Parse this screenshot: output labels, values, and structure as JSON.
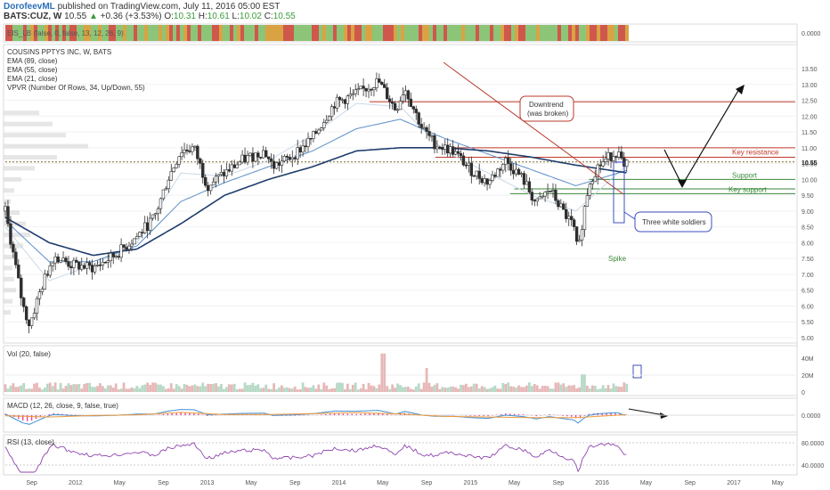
{
  "header": {
    "author": "DorofeevML",
    "published": "published on TradingView.com, July 11, 2016 05:00 EST",
    "symbol": "BATS:CUZ, W",
    "last": "10.55",
    "change": "+0.36 (+3.53%)",
    "open_label": "O:",
    "open": "10.31",
    "high_label": "H:",
    "high": "10.61",
    "low_label": "L:",
    "low": "10.02",
    "close_label": "C:",
    "close": "10.55"
  },
  "indicators": {
    "eis": "EIS_LB (false, 0, false, 13, 12, 26, 9)",
    "eis_value": "0.0000",
    "title": "COUSINS PPTYS INC, W, BATS",
    "ema89": "EMA (89, close)",
    "ema55": "EMA (55, close)",
    "ema21": "EMA (21, close)",
    "vpvr": "VPVR (Number Of Rows, 34, Up/Down, 55)",
    "vol": "Vol (20, false)",
    "macd": "MACD (12, 26, close, 9, false, true)",
    "rsi": "RSI (13, close)"
  },
  "colors": {
    "up": "#2e2e2e",
    "down": "#2e2e2e",
    "ema89": "#1f3d6d",
    "ema55": "#5b8fc8",
    "ema21": "#c9d9ea",
    "resistance": "#c0392b",
    "support": "#3b8a3b",
    "eis_green": "#8cc578",
    "eis_red": "#d0574c",
    "eis_orange": "#d9a343",
    "macd_line": "#3f8fd6",
    "macd_signal": "#f09a3a",
    "macd_hist": "#e0489a",
    "rsi": "#8e44ad"
  },
  "annotations": {
    "downtrend": "Downtrend",
    "downtrend2": "(was broken)",
    "key_resistance": "Key resistance",
    "support": "Support",
    "key_support": "Key support",
    "three_white_soldiers": "Three white soldiers",
    "spike": "Spike"
  },
  "chart_data": {
    "type": "candlestick",
    "price_axis": {
      "ticks": [
        "13.50",
        "13.00",
        "12.50",
        "12.00",
        "11.50",
        "11.00",
        "10.50",
        "10.00",
        "9.50",
        "9.00",
        "8.50",
        "8.00",
        "7.50",
        "7.00",
        "6.50",
        "6.00",
        "5.50",
        "5.00"
      ],
      "last_label": "10.55",
      "ylim": [
        4.9,
        13.5
      ]
    },
    "time_axis": {
      "ticks": [
        "Sep",
        "2012",
        "May",
        "Sep",
        "2013",
        "May",
        "Sep",
        "2014",
        "May",
        "Sep",
        "2015",
        "May",
        "Sep",
        "2016",
        "May",
        "Sep",
        "2017",
        "May"
      ]
    },
    "price_path": [
      {
        "t": 0.0,
        "p": 9.0
      },
      {
        "t": 0.2,
        "p": 7.5
      },
      {
        "t": 0.4,
        "p": 6.0
      },
      {
        "t": 0.55,
        "p": 5.4
      },
      {
        "t": 0.8,
        "p": 6.5
      },
      {
        "t": 1.1,
        "p": 7.6
      },
      {
        "t": 1.5,
        "p": 7.3
      },
      {
        "t": 2.0,
        "p": 7.2
      },
      {
        "t": 2.5,
        "p": 7.6
      },
      {
        "t": 3.0,
        "p": 8.2
      },
      {
        "t": 3.4,
        "p": 8.8
      },
      {
        "t": 3.7,
        "p": 10.0
      },
      {
        "t": 4.0,
        "p": 10.9
      },
      {
        "t": 4.3,
        "p": 11.0
      },
      {
        "t": 4.6,
        "p": 9.8
      },
      {
        "t": 5.0,
        "p": 10.2
      },
      {
        "t": 5.4,
        "p": 10.6
      },
      {
        "t": 5.9,
        "p": 10.9
      },
      {
        "t": 6.1,
        "p": 10.4
      },
      {
        "t": 6.5,
        "p": 10.7
      },
      {
        "t": 7.0,
        "p": 11.3
      },
      {
        "t": 7.5,
        "p": 12.4
      },
      {
        "t": 8.0,
        "p": 12.7
      },
      {
        "t": 8.5,
        "p": 13.1
      },
      {
        "t": 8.9,
        "p": 12.2
      },
      {
        "t": 9.1,
        "p": 12.9
      },
      {
        "t": 9.5,
        "p": 11.6
      },
      {
        "t": 9.8,
        "p": 11.1
      },
      {
        "t": 10.2,
        "p": 10.9
      },
      {
        "t": 10.6,
        "p": 10.3
      },
      {
        "t": 11.0,
        "p": 9.9
      },
      {
        "t": 11.4,
        "p": 10.6
      },
      {
        "t": 11.8,
        "p": 10.0
      },
      {
        "t": 12.1,
        "p": 9.2
      },
      {
        "t": 12.4,
        "p": 9.7
      },
      {
        "t": 12.7,
        "p": 9.0
      },
      {
        "t": 12.95,
        "p": 8.5
      },
      {
        "t": 13.05,
        "p": 7.6
      },
      {
        "t": 13.15,
        "p": 8.7
      },
      {
        "t": 13.3,
        "p": 9.9
      },
      {
        "t": 13.5,
        "p": 10.4
      },
      {
        "t": 13.75,
        "p": 10.7
      },
      {
        "t": 13.95,
        "p": 10.9
      },
      {
        "t": 14.1,
        "p": 10.3
      },
      {
        "t": 14.2,
        "p": 10.55
      }
    ],
    "ema89_path": [
      {
        "t": 0.0,
        "p": 8.8
      },
      {
        "t": 1.0,
        "p": 8.0
      },
      {
        "t": 2.0,
        "p": 7.6
      },
      {
        "t": 3.0,
        "p": 7.8
      },
      {
        "t": 4.0,
        "p": 8.6
      },
      {
        "t": 5.0,
        "p": 9.5
      },
      {
        "t": 6.0,
        "p": 10.0
      },
      {
        "t": 7.0,
        "p": 10.4
      },
      {
        "t": 8.0,
        "p": 10.9
      },
      {
        "t": 9.0,
        "p": 11.0
      },
      {
        "t": 10.0,
        "p": 11.0
      },
      {
        "t": 11.0,
        "p": 10.9
      },
      {
        "t": 12.0,
        "p": 10.7
      },
      {
        "t": 13.0,
        "p": 10.45
      },
      {
        "t": 14.2,
        "p": 10.2
      }
    ],
    "ema55_path": [
      {
        "t": 0.0,
        "p": 8.7
      },
      {
        "t": 1.0,
        "p": 7.4
      },
      {
        "t": 2.0,
        "p": 7.4
      },
      {
        "t": 3.0,
        "p": 7.9
      },
      {
        "t": 4.0,
        "p": 9.3
      },
      {
        "t": 5.0,
        "p": 9.9
      },
      {
        "t": 6.0,
        "p": 10.4
      },
      {
        "t": 7.0,
        "p": 10.9
      },
      {
        "t": 8.0,
        "p": 11.6
      },
      {
        "t": 9.0,
        "p": 11.9
      },
      {
        "t": 10.0,
        "p": 11.3
      },
      {
        "t": 11.0,
        "p": 10.8
      },
      {
        "t": 12.0,
        "p": 10.3
      },
      {
        "t": 13.0,
        "p": 9.8
      },
      {
        "t": 14.2,
        "p": 10.3
      }
    ],
    "ema21_path": [
      {
        "t": 0.0,
        "p": 8.5
      },
      {
        "t": 1.0,
        "p": 6.8
      },
      {
        "t": 2.0,
        "p": 7.3
      },
      {
        "t": 3.0,
        "p": 8.0
      },
      {
        "t": 4.0,
        "p": 10.2
      },
      {
        "t": 5.0,
        "p": 10.1
      },
      {
        "t": 6.0,
        "p": 10.6
      },
      {
        "t": 7.0,
        "p": 11.4
      },
      {
        "t": 8.0,
        "p": 12.4
      },
      {
        "t": 9.0,
        "p": 12.3
      },
      {
        "t": 10.0,
        "p": 10.9
      },
      {
        "t": 11.0,
        "p": 10.2
      },
      {
        "t": 12.0,
        "p": 9.5
      },
      {
        "t": 13.0,
        "p": 9.0
      },
      {
        "t": 14.2,
        "p": 10.5
      }
    ],
    "levels": {
      "key_resistance": 10.7,
      "resistance_upper": 11.0,
      "support": 10.0,
      "support_mid": 9.7,
      "key_support": 9.55,
      "target": 12.45,
      "current": 10.55
    },
    "volume_axis": {
      "ticks": [
        "40M",
        "20M",
        "0"
      ]
    },
    "macd_axis": {
      "ticks": [
        "0.0000"
      ]
    },
    "rsi_axis": {
      "ticks": [
        "80.0000",
        "40.0000"
      ]
    }
  }
}
